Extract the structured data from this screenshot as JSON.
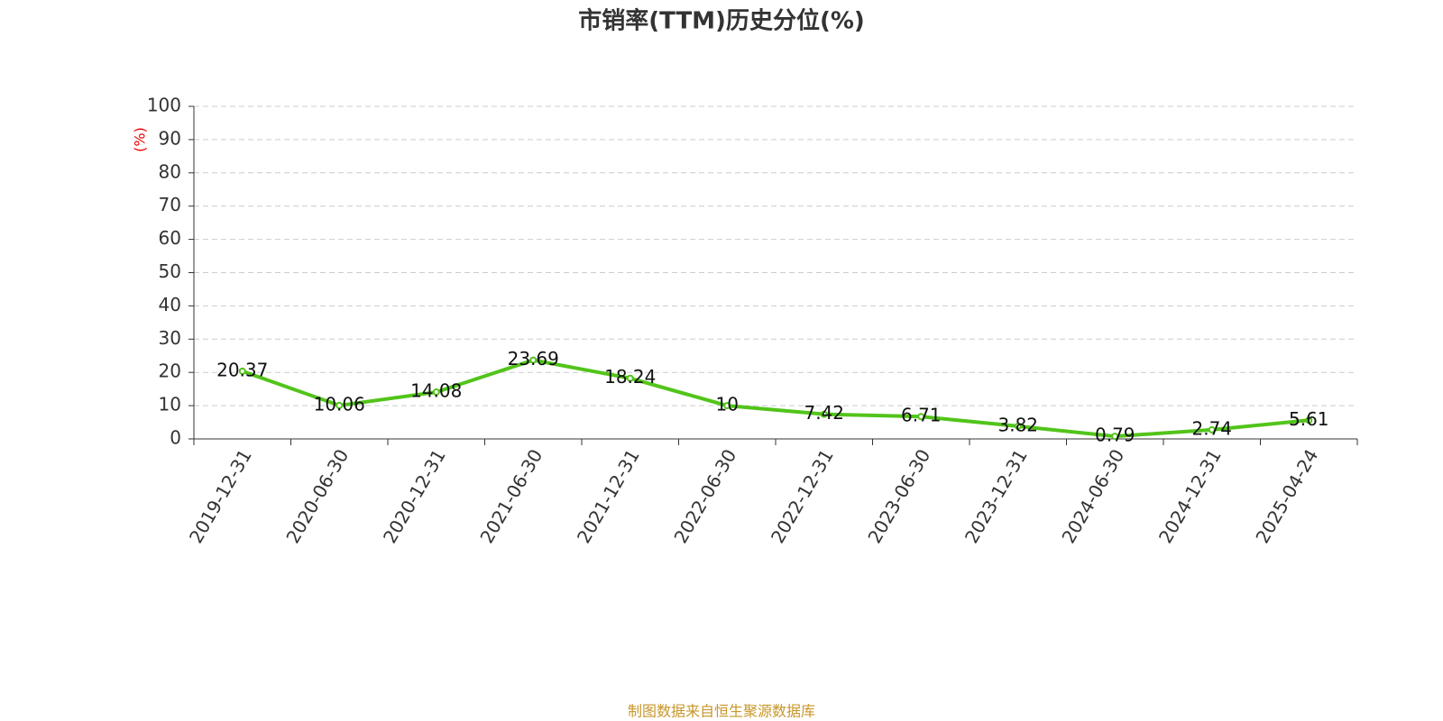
{
  "chart_data": {
    "type": "line",
    "title": "市销率(TTM)历史分位(%)",
    "y_label": "(%)",
    "categories": [
      "2019-12-31",
      "2020-06-30",
      "2020-12-31",
      "2021-06-30",
      "2021-12-31",
      "2022-06-30",
      "2022-12-31",
      "2023-06-30",
      "2023-12-31",
      "2024-06-30",
      "2024-12-31",
      "2025-04-24"
    ],
    "values": [
      20.37,
      10.06,
      14.08,
      23.69,
      18.24,
      10,
      7.42,
      6.71,
      3.82,
      0.79,
      2.74,
      5.61
    ],
    "color": "#52c41a",
    "ylim": [
      0,
      100
    ],
    "yticks": [
      0,
      10,
      20,
      30,
      40,
      50,
      60,
      70,
      80,
      90,
      100
    ],
    "grid": true,
    "source": "制图数据来自恒生聚源数据库"
  }
}
